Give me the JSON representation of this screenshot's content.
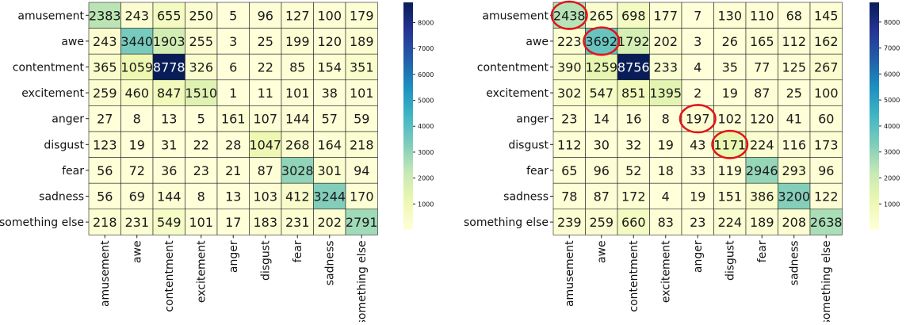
{
  "chart_data": [
    {
      "type": "heatmap",
      "rows": [
        "amusement",
        "awe",
        "contentment",
        "excitement",
        "anger",
        "disgust",
        "fear",
        "sadness",
        "something else"
      ],
      "cols": [
        "amusement",
        "awe",
        "contentment",
        "excitement",
        "anger",
        "disgust",
        "fear",
        "sadness",
        "something else"
      ],
      "values": [
        [
          2383,
          243,
          655,
          250,
          5,
          96,
          127,
          100,
          179
        ],
        [
          243,
          3440,
          1903,
          255,
          3,
          25,
          199,
          120,
          189
        ],
        [
          365,
          1059,
          8778,
          326,
          6,
          22,
          85,
          154,
          351
        ],
        [
          259,
          460,
          847,
          1510,
          1,
          11,
          101,
          38,
          101
        ],
        [
          27,
          8,
          13,
          5,
          161,
          107,
          144,
          57,
          59
        ],
        [
          123,
          19,
          31,
          22,
          28,
          1047,
          268,
          164,
          218
        ],
        [
          56,
          72,
          36,
          23,
          21,
          87,
          3028,
          301,
          94
        ],
        [
          56,
          69,
          144,
          8,
          13,
          103,
          412,
          3244,
          170
        ],
        [
          218,
          231,
          549,
          101,
          17,
          183,
          231,
          202,
          2791
        ]
      ],
      "colorbar": {
        "ticks": [
          1000,
          2000,
          3000,
          4000,
          5000,
          6000,
          7000,
          8000
        ],
        "vmin": 1,
        "vmax": 8778
      },
      "colormap": "YlGnBu",
      "highlighted_cells": []
    },
    {
      "type": "heatmap",
      "rows": [
        "amusement",
        "awe",
        "contentment",
        "excitement",
        "anger",
        "disgust",
        "fear",
        "sadness",
        "something else"
      ],
      "cols": [
        "amusement",
        "awe",
        "contentment",
        "excitement",
        "anger",
        "disgust",
        "fear",
        "sadness",
        "something else"
      ],
      "values": [
        [
          2438,
          265,
          698,
          177,
          7,
          130,
          110,
          68,
          145
        ],
        [
          223,
          3692,
          1792,
          202,
          3,
          26,
          165,
          112,
          162
        ],
        [
          390,
          1259,
          8756,
          233,
          4,
          35,
          77,
          125,
          267
        ],
        [
          302,
          547,
          851,
          1395,
          2,
          19,
          87,
          25,
          100
        ],
        [
          23,
          14,
          16,
          8,
          197,
          102,
          120,
          41,
          60
        ],
        [
          112,
          30,
          32,
          19,
          43,
          1171,
          224,
          116,
          173
        ],
        [
          65,
          96,
          52,
          18,
          33,
          119,
          2946,
          293,
          96
        ],
        [
          78,
          87,
          172,
          4,
          19,
          151,
          386,
          3200,
          122
        ],
        [
          239,
          259,
          660,
          83,
          23,
          224,
          189,
          208,
          2638
        ]
      ],
      "colorbar": {
        "ticks": [
          1000,
          2000,
          3000,
          4000,
          5000,
          6000,
          7000,
          8000
        ],
        "vmin": 2,
        "vmax": 8756
      },
      "colormap": "YlGnBu",
      "highlighted_cells": [
        [
          0,
          0
        ],
        [
          1,
          1
        ],
        [
          4,
          4
        ],
        [
          5,
          5
        ]
      ],
      "highlight_color": "#e3141b"
    }
  ]
}
